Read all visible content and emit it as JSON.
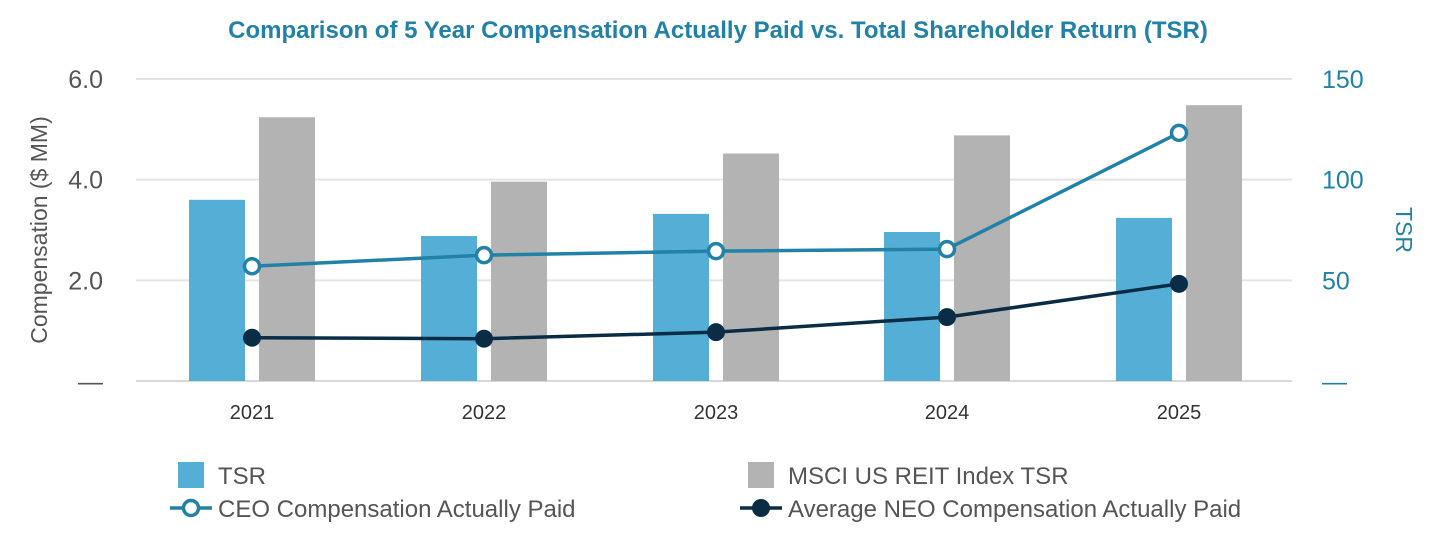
{
  "chart_data": {
    "type": "bar",
    "title": "Comparison of 5 Year Compensation Actually Paid vs. Total Shareholder Return (TSR)",
    "categories": [
      "2021",
      "2022",
      "2023",
      "2024",
      "2025"
    ],
    "y_left": {
      "label": "Compensation ($ MM)",
      "range": [
        0,
        6
      ],
      "ticks": [
        {
          "value": 0,
          "label": "—"
        },
        {
          "value": 2,
          "label": "2.0"
        },
        {
          "value": 4,
          "label": "4.0"
        },
        {
          "value": 6,
          "label": "6.0"
        }
      ]
    },
    "y_right": {
      "label": "TSR",
      "range": [
        0,
        150
      ],
      "ticks": [
        {
          "value": 0,
          "label": "—"
        },
        {
          "value": 50,
          "label": "50"
        },
        {
          "value": 100,
          "label": "100"
        },
        {
          "value": 150,
          "label": "150"
        }
      ]
    },
    "series": [
      {
        "name": "TSR",
        "kind": "bar",
        "axis": "right",
        "color": "#55AED6",
        "values": [
          90,
          72,
          83,
          74,
          81
        ]
      },
      {
        "name": "MSCI US REIT Index TSR",
        "kind": "bar",
        "axis": "right",
        "color": "#B3B3B3",
        "values": [
          131,
          99,
          113,
          122,
          137
        ]
      },
      {
        "name": "CEO Compensation Actually Paid",
        "kind": "line",
        "marker": "hollow",
        "axis": "left",
        "color": "#2281A6",
        "values": [
          2.28,
          2.5,
          2.58,
          2.62,
          4.93
        ]
      },
      {
        "name": "Average NEO Compensation Actually Paid",
        "kind": "line",
        "marker": "filled",
        "axis": "left",
        "color": "#0A2C45",
        "values": [
          0.86,
          0.84,
          0.97,
          1.27,
          1.93
        ]
      }
    ],
    "grid": true,
    "legend_position": "bottom",
    "colors": {
      "title": "#2281A6",
      "left_axis_text": "#555555",
      "right_axis_text": "#2281A6",
      "grid": "#E3E3E3"
    }
  }
}
